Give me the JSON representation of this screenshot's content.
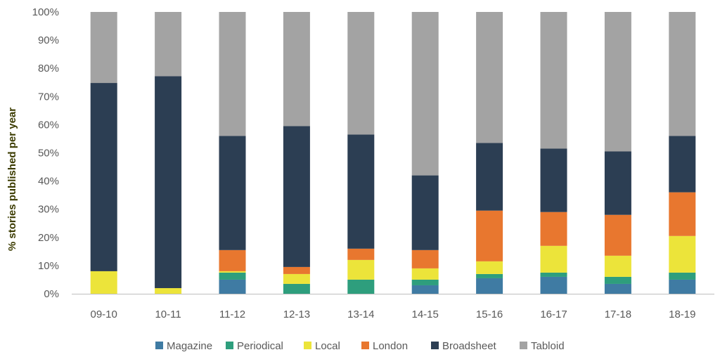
{
  "chart_data": {
    "type": "bar",
    "stacked": true,
    "ylabel": "% stories published per year",
    "xlabel": "",
    "ylim": [
      0,
      100
    ],
    "y_ticks": [
      0,
      10,
      20,
      30,
      40,
      50,
      60,
      70,
      80,
      90,
      100
    ],
    "y_tick_labels": [
      "0%",
      "10%",
      "20%",
      "30%",
      "40%",
      "50%",
      "60%",
      "70%",
      "80%",
      "90%",
      "100%"
    ],
    "grid": false,
    "legend_position": "bottom",
    "categories": [
      "09-10",
      "10-11",
      "11-12",
      "12-13",
      "13-14",
      "14-15",
      "15-16",
      "16-17",
      "17-18",
      "18-19"
    ],
    "series": [
      {
        "name": "Magazine",
        "color": "#3f7ba3",
        "values": [
          0,
          0,
          5,
          0,
          0,
          3,
          5.5,
          6,
          3.5,
          5
        ]
      },
      {
        "name": "Periodical",
        "color": "#2e9e7d",
        "values": [
          0,
          0,
          2.5,
          3.5,
          5,
          2,
          1.5,
          1.5,
          2.5,
          2.5
        ]
      },
      {
        "name": "Local",
        "color": "#ece43a",
        "values": [
          8,
          2,
          0.5,
          3.5,
          7,
          4,
          4.5,
          9.5,
          7.5,
          13
        ]
      },
      {
        "name": "London",
        "color": "#e8772f",
        "values": [
          0,
          0,
          7.5,
          2.5,
          4,
          6.5,
          18,
          12,
          14.5,
          15.5
        ]
      },
      {
        "name": "Broadsheet",
        "color": "#2c3e53",
        "values": [
          66.8,
          75.2,
          40.5,
          50,
          40.5,
          26.5,
          24,
          22.5,
          22.5,
          20
        ]
      },
      {
        "name": "Tabloid",
        "color": "#a3a3a3",
        "values": [
          25.2,
          22.8,
          44,
          40.5,
          43.5,
          58,
          46.5,
          48.5,
          49.5,
          44
        ]
      }
    ]
  }
}
